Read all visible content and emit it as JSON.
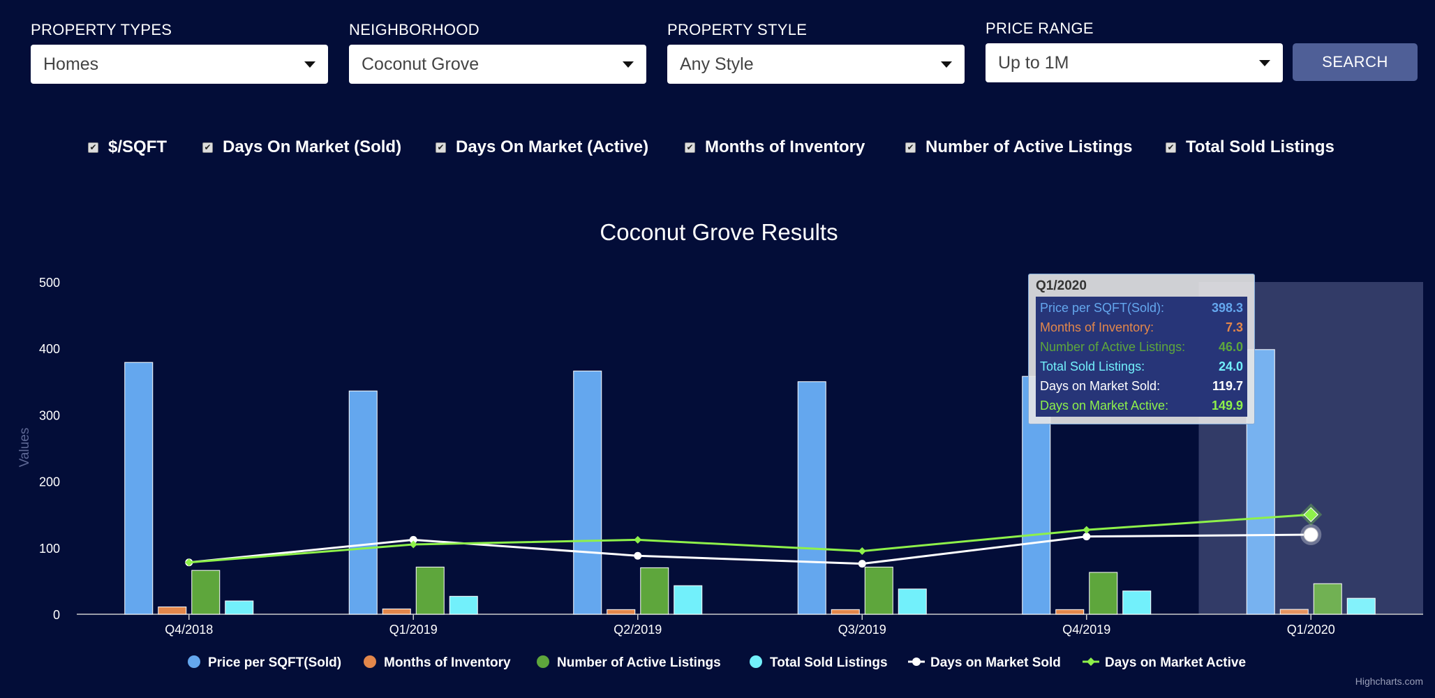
{
  "filters": [
    {
      "label": "PROPERTY TYPES",
      "value": "Homes"
    },
    {
      "label": "NEIGHBORHOOD",
      "value": "Coconut Grove"
    },
    {
      "label": "PROPERTY STYLE",
      "value": "Any Style"
    },
    {
      "label": "PRICE RANGE",
      "value": "Up to 1M"
    }
  ],
  "search_label": "SEARCH",
  "checkboxes": [
    {
      "label": "$/SQFT",
      "checked": true
    },
    {
      "label": "Days On Market (Sold)",
      "checked": true
    },
    {
      "label": "Days On Market (Active)",
      "checked": true
    },
    {
      "label": "Months of Inventory",
      "checked": true
    },
    {
      "label": "Number of Active Listings",
      "checked": true
    },
    {
      "label": "Total Sold Listings",
      "checked": true
    }
  ],
  "credit": "Highcharts.com",
  "colors": {
    "background": "#030d38",
    "price": "#64a7ee",
    "months": "#e3874b",
    "active_listings": "#5ea63c",
    "sold_listings": "#72f0fb",
    "dom_sold": "#ffffff",
    "dom_active": "#8ef14a",
    "highlight_band": "#3b4470"
  },
  "chart_data": {
    "type": "bar",
    "title": "Coconut Grove Results",
    "ylabel": "Values",
    "ylim": [
      0,
      500
    ],
    "yticks": [
      0,
      100,
      200,
      300,
      400,
      500
    ],
    "categories": [
      "Q4/2018",
      "Q1/2019",
      "Q2/2019",
      "Q3/2019",
      "Q4/2019",
      "Q1/2020"
    ],
    "highlighted_category": "Q1/2020",
    "legend_position": "bottom-center",
    "series": [
      {
        "name": "Price per SQFT(Sold)",
        "type": "column",
        "color": "#64a7ee",
        "values": [
          379,
          336,
          366,
          350,
          358,
          398.3
        ]
      },
      {
        "name": "Months of Inventory",
        "type": "column",
        "color": "#e3874b",
        "values": [
          11,
          8,
          7,
          7,
          7,
          7.3
        ]
      },
      {
        "name": "Number of Active Listings",
        "type": "column",
        "color": "#5ea63c",
        "values": [
          66,
          71,
          70,
          71,
          63,
          46.0
        ]
      },
      {
        "name": "Total Sold Listings",
        "type": "column",
        "color": "#72f0fb",
        "values": [
          20,
          27,
          43,
          38,
          35,
          24.0
        ]
      },
      {
        "name": "Days on Market Sold",
        "type": "line",
        "marker": "circle",
        "color": "#ffffff",
        "values": [
          78,
          112,
          88,
          76,
          117,
          119.7
        ]
      },
      {
        "name": "Days on Market Active",
        "type": "line",
        "marker": "diamond",
        "color": "#8ef14a",
        "values": [
          78,
          105,
          112,
          95,
          127,
          149.9
        ]
      }
    ]
  },
  "tooltip": {
    "title": "Q1/2020",
    "rows": [
      {
        "label": "Price per SQFT(Sold):",
        "value": "398.3",
        "color": "#64a7ee"
      },
      {
        "label": "Months of Inventory:",
        "value": "7.3",
        "color": "#e3874b"
      },
      {
        "label": "Number of Active Listings:",
        "value": "46.0",
        "color": "#5ea63c"
      },
      {
        "label": "Total Sold Listings:",
        "value": "24.0",
        "color": "#72f0fb"
      },
      {
        "label": "Days on Market Sold:",
        "value": "119.7",
        "color": "#ffffff"
      },
      {
        "label": "Days on Market Active:",
        "value": "149.9",
        "color": "#8ef14a"
      }
    ]
  }
}
